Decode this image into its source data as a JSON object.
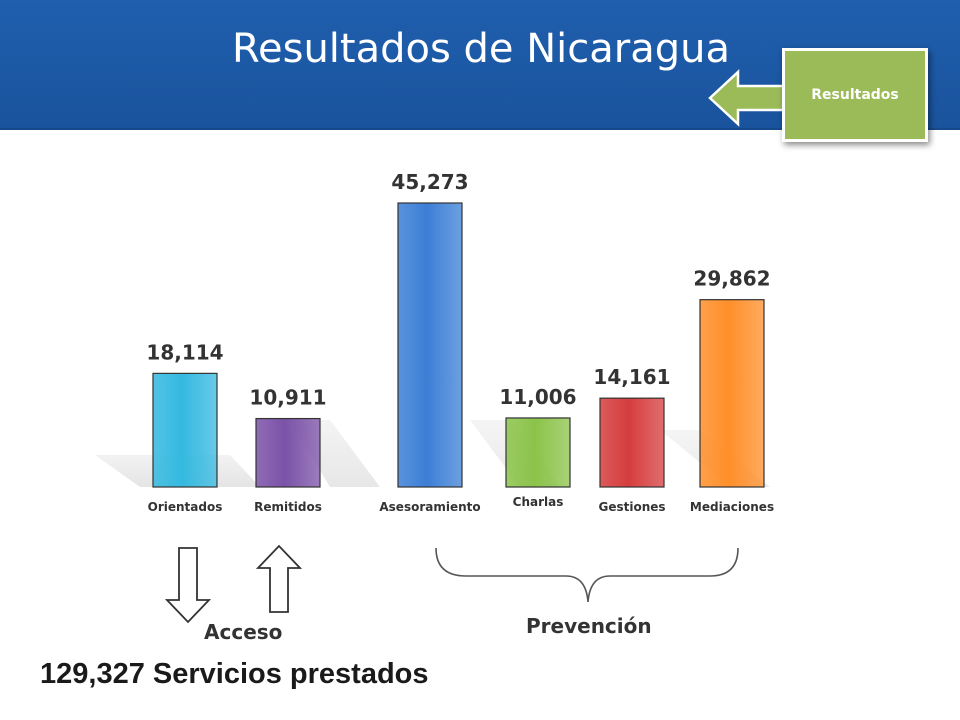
{
  "header": {
    "title": "Resultados de Nicaragua"
  },
  "nav": {
    "label": "Resultados",
    "icon": "arrow-left-icon"
  },
  "chart_data": {
    "type": "bar",
    "categories": [
      "Orientados",
      "Remitidos",
      "Asesoramiento",
      "Charlas",
      "Gestiones",
      "Mediaciones"
    ],
    "values": [
      18114,
      10911,
      45273,
      11006,
      14161,
      29862
    ],
    "value_labels": [
      "18,114",
      "10,911",
      "45,273",
      "11,006",
      "14,161",
      "29,862"
    ],
    "colors": [
      "#34b9e0",
      "#7b52a8",
      "#3c7fd6",
      "#8bc34a",
      "#d63d3d",
      "#ff8f2a"
    ],
    "ylim": [
      0,
      45273
    ],
    "grid": false
  },
  "groups": {
    "acceso": "Acceso",
    "prevencion": "Prevención"
  },
  "summary": {
    "total": "129,327 Servicios prestados"
  }
}
